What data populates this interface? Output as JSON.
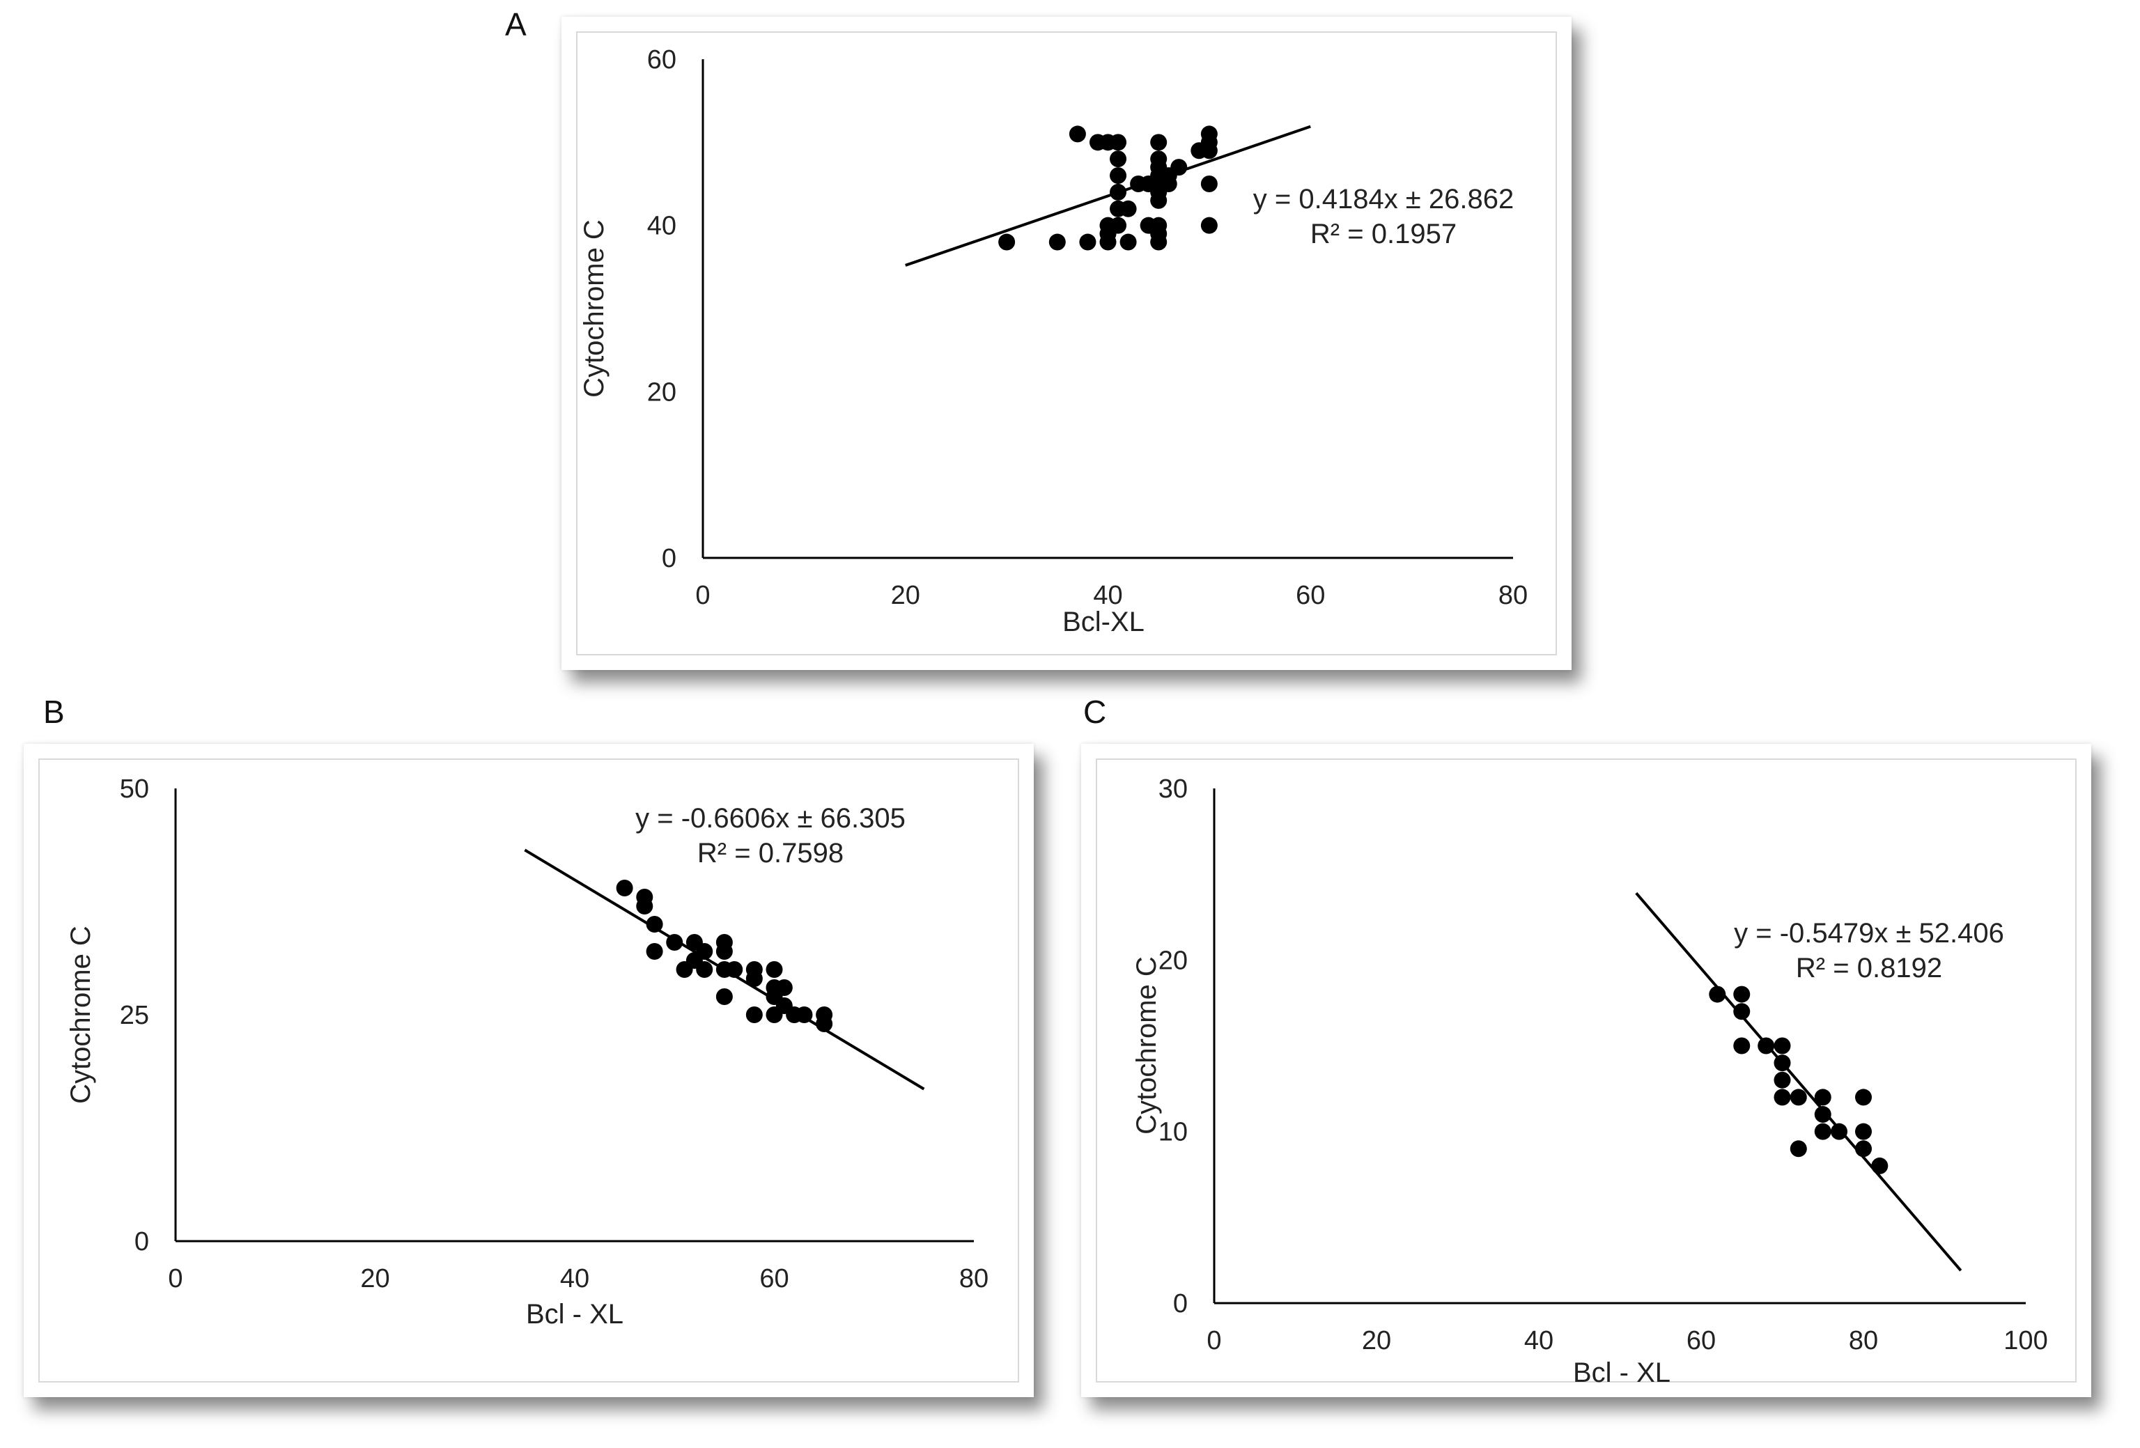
{
  "chart_data": [
    {
      "id": "A",
      "type": "scatter",
      "panel_label": "A",
      "xlabel": "Bcl-XL",
      "ylabel": "Cytochrome C",
      "xlim": [
        0,
        80
      ],
      "ylim": [
        0,
        60
      ],
      "xticks": [
        "0",
        "20",
        "40",
        "60",
        "80"
      ],
      "yticks": [
        "0",
        "20",
        "40",
        "60"
      ],
      "equation": "y = 0.4184x ± 26.862",
      "r2": "R² = 0.1957",
      "trendline": {
        "x": [
          20,
          60
        ],
        "y": [
          35.2,
          51.9
        ]
      },
      "points": [
        [
          30,
          38
        ],
        [
          35,
          38
        ],
        [
          37,
          51
        ],
        [
          38,
          38
        ],
        [
          39,
          50
        ],
        [
          40,
          50
        ],
        [
          40,
          40
        ],
        [
          40,
          39
        ],
        [
          40,
          38
        ],
        [
          41,
          50
        ],
        [
          41,
          48
        ],
        [
          41,
          46
        ],
        [
          41,
          44
        ],
        [
          41,
          42
        ],
        [
          41,
          40
        ],
        [
          42,
          42
        ],
        [
          42,
          38
        ],
        [
          43,
          45
        ],
        [
          44,
          45
        ],
        [
          44,
          40
        ],
        [
          45,
          50
        ],
        [
          45,
          48
        ],
        [
          45,
          47
        ],
        [
          45,
          46
        ],
        [
          45,
          45
        ],
        [
          45,
          44
        ],
        [
          45,
          43
        ],
        [
          45,
          40
        ],
        [
          45,
          39
        ],
        [
          45,
          38
        ],
        [
          46,
          45
        ],
        [
          46,
          46
        ],
        [
          47,
          47
        ],
        [
          49,
          49
        ],
        [
          50,
          51
        ],
        [
          50,
          50
        ],
        [
          50,
          49
        ],
        [
          50,
          45
        ],
        [
          50,
          40
        ]
      ]
    },
    {
      "id": "B",
      "type": "scatter",
      "panel_label": "B",
      "xlabel": "Bcl - XL",
      "ylabel": "Cytochrome C",
      "xlim": [
        0,
        80
      ],
      "ylim": [
        0,
        50
      ],
      "xticks": [
        "0",
        "20",
        "40",
        "60",
        "80"
      ],
      "yticks": [
        "0",
        "25",
        "50"
      ],
      "equation": "y = -0.6606x ± 66.305",
      "r2": "R² = 0.7598",
      "trendline": {
        "x": [
          35,
          75
        ],
        "y": [
          43.2,
          16.8
        ]
      },
      "points": [
        [
          45,
          39
        ],
        [
          47,
          38
        ],
        [
          47,
          37
        ],
        [
          48,
          35
        ],
        [
          48,
          32
        ],
        [
          50,
          33
        ],
        [
          51,
          30
        ],
        [
          52,
          33
        ],
        [
          52,
          31
        ],
        [
          53,
          32
        ],
        [
          53,
          30
        ],
        [
          55,
          33
        ],
        [
          55,
          32
        ],
        [
          55,
          30
        ],
        [
          55,
          27
        ],
        [
          56,
          30
        ],
        [
          58,
          30
        ],
        [
          58,
          29
        ],
        [
          58,
          25
        ],
        [
          60,
          30
        ],
        [
          60,
          28
        ],
        [
          60,
          27
        ],
        [
          60,
          25
        ],
        [
          61,
          28
        ],
        [
          61,
          26
        ],
        [
          62,
          25
        ],
        [
          63,
          25
        ],
        [
          65,
          25
        ],
        [
          65,
          24
        ]
      ]
    },
    {
      "id": "C",
      "type": "scatter",
      "panel_label": "C",
      "xlabel": "Bcl - XL",
      "ylabel": "Cytochrome C",
      "xlim": [
        0,
        100
      ],
      "ylim": [
        0,
        30
      ],
      "xticks": [
        "0",
        "20",
        "40",
        "60",
        "80",
        "100"
      ],
      "yticks": [
        "0",
        "10",
        "20",
        "30"
      ],
      "equation": "y = -0.5479x ± 52.406",
      "r2": "R² = 0.8192",
      "trendline": {
        "x": [
          52,
          92
        ],
        "y": [
          23.9,
          1.9
        ]
      },
      "points": [
        [
          62,
          18
        ],
        [
          65,
          18
        ],
        [
          65,
          17
        ],
        [
          65,
          15
        ],
        [
          68,
          15
        ],
        [
          70,
          15
        ],
        [
          70,
          14
        ],
        [
          70,
          13
        ],
        [
          70,
          12
        ],
        [
          72,
          12
        ],
        [
          72,
          9
        ],
        [
          75,
          12
        ],
        [
          75,
          11
        ],
        [
          75,
          10
        ],
        [
          77,
          10
        ],
        [
          80,
          12
        ],
        [
          80,
          10
        ],
        [
          80,
          9
        ],
        [
          82,
          8
        ]
      ]
    }
  ]
}
